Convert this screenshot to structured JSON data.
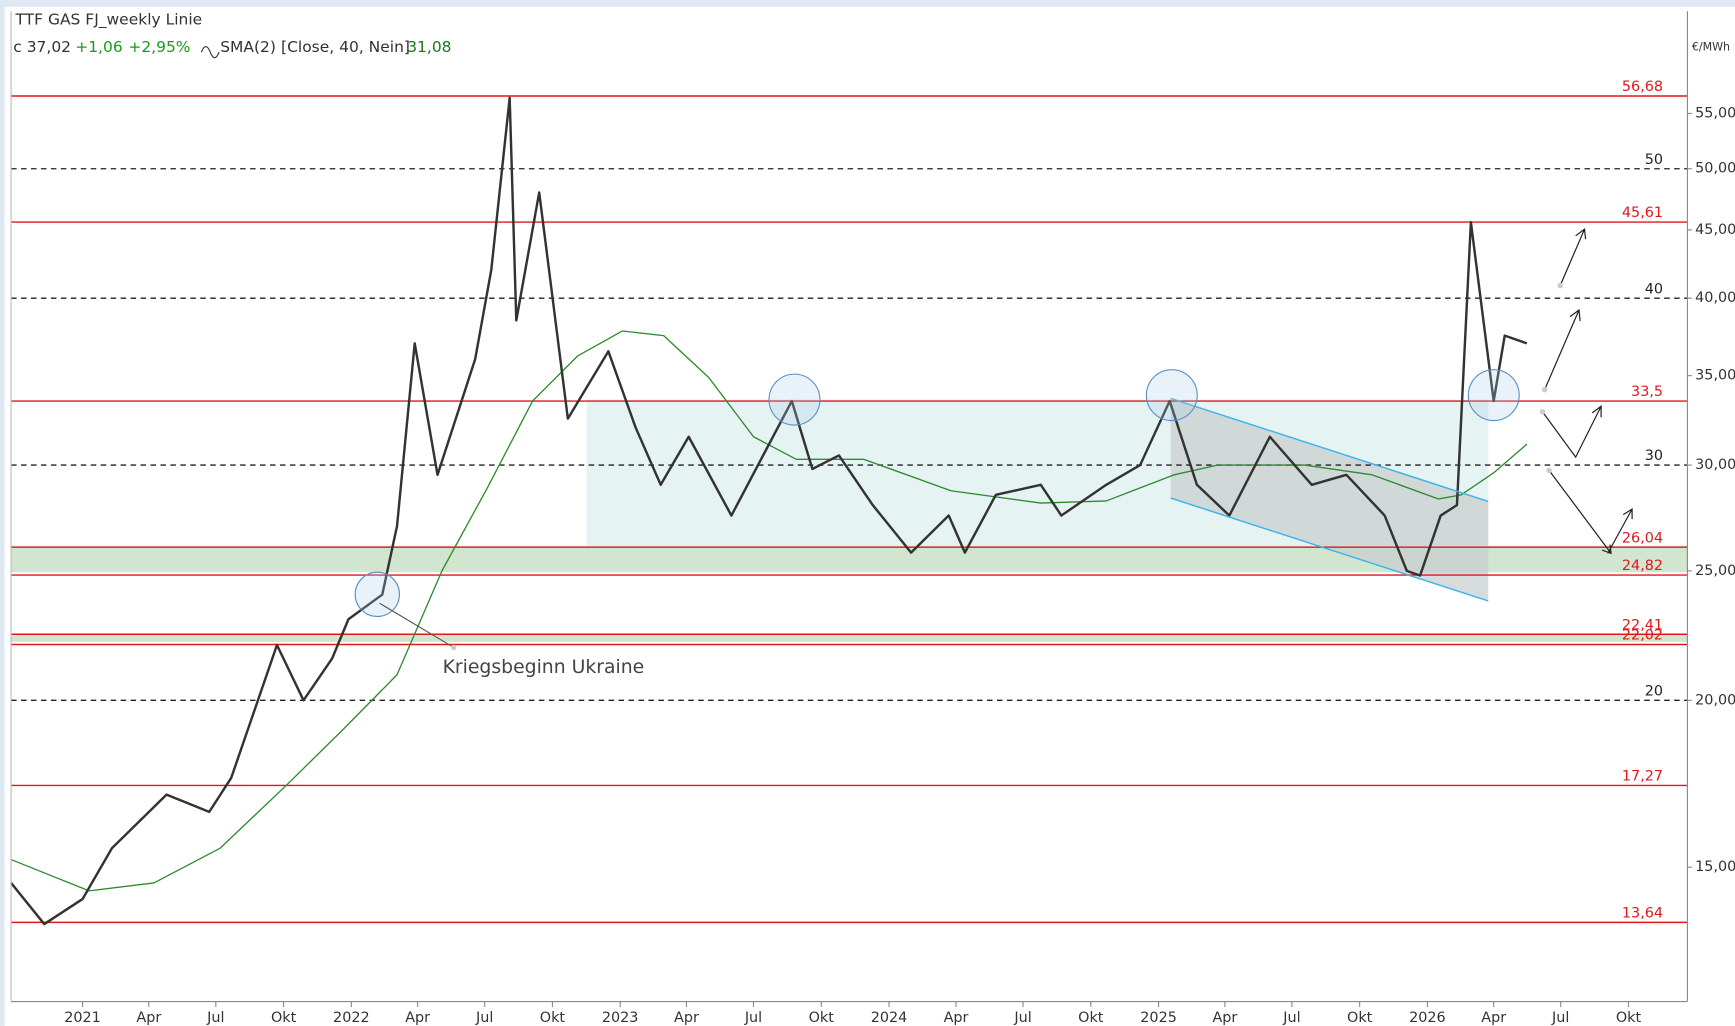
{
  "chart_data": {
    "type": "line",
    "title": "TTF GAS FJ_weekly Linie",
    "info": {
      "last": "c 37,02",
      "change": "+1,06",
      "change_pct": "+2,95%",
      "indicator": "SMA(2)",
      "params": "[Close, 40, Nein]",
      "indicator_value": "31,08"
    },
    "y_label": "€/MWh",
    "annotation": "Kriegsbeginn Ukraine",
    "log_scale": true,
    "ylim": [
      11.9,
      65.6
    ],
    "yticks": [
      {
        "value": 15,
        "label": "15,00"
      },
      {
        "value": 20,
        "label": "20,00"
      },
      {
        "value": 25,
        "label": "25,00"
      },
      {
        "value": 30,
        "label": "30,00"
      },
      {
        "value": 35,
        "label": "35,00"
      },
      {
        "value": 40,
        "label": "40,00"
      },
      {
        "value": 45,
        "label": "45,00"
      },
      {
        "value": 50,
        "label": "50,00"
      },
      {
        "value": 55,
        "label": "55,00"
      }
    ],
    "xlim": [
      "2020-09-26",
      "2026-12-20"
    ],
    "xticks": [
      {
        "value": "2021-01-01",
        "label": "2021"
      },
      {
        "value": "2021-04-01",
        "label": "Apr"
      },
      {
        "value": "2021-07-01",
        "label": "Jul"
      },
      {
        "value": "2021-10-01",
        "label": "Okt"
      },
      {
        "value": "2022-01-01",
        "label": "2022"
      },
      {
        "value": "2022-04-01",
        "label": "Apr"
      },
      {
        "value": "2022-07-01",
        "label": "Jul"
      },
      {
        "value": "2022-10-01",
        "label": "Okt"
      },
      {
        "value": "2023-01-01",
        "label": "2023"
      },
      {
        "value": "2023-04-01",
        "label": "Apr"
      },
      {
        "value": "2023-07-01",
        "label": "Jul"
      },
      {
        "value": "2023-10-01",
        "label": "Okt"
      },
      {
        "value": "2024-01-01",
        "label": "2024"
      },
      {
        "value": "2024-04-01",
        "label": "Apr"
      },
      {
        "value": "2024-07-01",
        "label": "Jul"
      },
      {
        "value": "2024-10-01",
        "label": "Okt"
      },
      {
        "value": "2025-01-01",
        "label": "2025"
      },
      {
        "value": "2025-04-01",
        "label": "Apr"
      },
      {
        "value": "2025-07-01",
        "label": "Jul"
      },
      {
        "value": "2025-10-01",
        "label": "Okt"
      },
      {
        "value": "2026-01-01",
        "label": "2026"
      },
      {
        "value": "2026-04-01",
        "label": "Apr"
      },
      {
        "value": "2026-07-01",
        "label": "Jul"
      },
      {
        "value": "2026-10-01",
        "label": "Okt"
      }
    ],
    "levels": [
      {
        "value": 56.68,
        "label": "56,68"
      },
      {
        "value": 45.61,
        "label": "45,61"
      },
      {
        "value": 33.5,
        "label": "33,5"
      },
      {
        "value": 26.04,
        "label": "26,04"
      },
      {
        "value": 24.82,
        "label": "24,82"
      },
      {
        "value": 22.41,
        "label": "22,41"
      },
      {
        "value": 22.02,
        "label": "22,02"
      },
      {
        "value": 17.27,
        "label": "17,27"
      },
      {
        "value": 13.64,
        "label": "13,64"
      }
    ],
    "level_color": "#e3161c",
    "dashed_levels": [
      50,
      40,
      30,
      20
    ],
    "dashed_color": "#222222",
    "series": [
      {
        "color": "#333333",
        "width": 2.2,
        "x": [
          "2020-09-26",
          "2020-11-10",
          "2021-01-01",
          "2021-02-10",
          "2021-04-25",
          "2021-06-22",
          "2021-07-22",
          "2021-09-22",
          "2021-10-28",
          "2021-12-06",
          "2021-12-28",
          "2022-02-12",
          "2022-03-04",
          "2022-03-28",
          "2022-04-28",
          "2022-06-18",
          "2022-07-10",
          "2022-08-04",
          "2022-08-13",
          "2022-09-13",
          "2022-10-22",
          "2022-12-16",
          "2023-01-22",
          "2023-02-25",
          "2023-04-04",
          "2023-06-01",
          "2023-08-22",
          "2023-09-19",
          "2023-10-25",
          "2023-12-10",
          "2024-01-31",
          "2024-03-22",
          "2024-04-13",
          "2024-05-25",
          "2024-07-25",
          "2024-08-22",
          "2024-10-22",
          "2024-12-07",
          "2025-01-16",
          "2025-02-22",
          "2025-04-07",
          "2025-06-01",
          "2025-07-28",
          "2025-09-13",
          "2025-11-04",
          "2025-12-04",
          "2025-12-22",
          "2026-01-19",
          "2026-02-10",
          "2026-03-01",
          "2026-04-01",
          "2026-04-16",
          "2026-05-16"
        ],
        "values": [
          14.6,
          13.6,
          14.2,
          15.5,
          17.0,
          16.5,
          17.5,
          22.0,
          20.0,
          21.5,
          23.0,
          24.0,
          27.0,
          37.0,
          29.5,
          36.0,
          42.0,
          56.5,
          38.5,
          48.0,
          32.5,
          36.5,
          32.0,
          29.0,
          31.5,
          27.5,
          33.5,
          29.8,
          30.5,
          28.0,
          25.8,
          27.5,
          25.8,
          28.5,
          29.0,
          27.5,
          29.0,
          30.0,
          33.5,
          29.0,
          27.5,
          31.5,
          29.0,
          29.5,
          27.5,
          25.0,
          24.8,
          27.5,
          28.0,
          45.6,
          33.5,
          37.5,
          37.0
        ]
      },
      {
        "color": "#2e8b2e",
        "width": 1.2,
        "x": [
          "2020-09-26",
          "2021-01-10",
          "2021-04-08",
          "2021-07-07",
          "2021-10-06",
          "2021-12-20",
          "2022-03-04",
          "2022-05-04",
          "2022-07-04",
          "2022-09-04",
          "2022-11-04",
          "2023-01-04",
          "2023-03-01",
          "2023-05-01",
          "2023-07-01",
          "2023-08-28",
          "2023-11-28",
          "2024-03-25",
          "2024-07-25",
          "2024-10-22",
          "2025-01-22",
          "2025-03-22",
          "2025-07-18",
          "2025-10-18",
          "2026-01-16",
          "2026-02-16",
          "2026-04-01",
          "2026-05-16"
        ],
        "values": [
          15.2,
          14.4,
          14.6,
          15.5,
          17.3,
          19.0,
          20.9,
          25.0,
          28.8,
          33.5,
          36.2,
          37.8,
          37.5,
          34.9,
          31.5,
          30.3,
          30.3,
          28.7,
          28.1,
          28.2,
          29.5,
          30.0,
          30.0,
          29.5,
          28.3,
          28.5,
          29.6,
          31.1
        ]
      }
    ]
  }
}
